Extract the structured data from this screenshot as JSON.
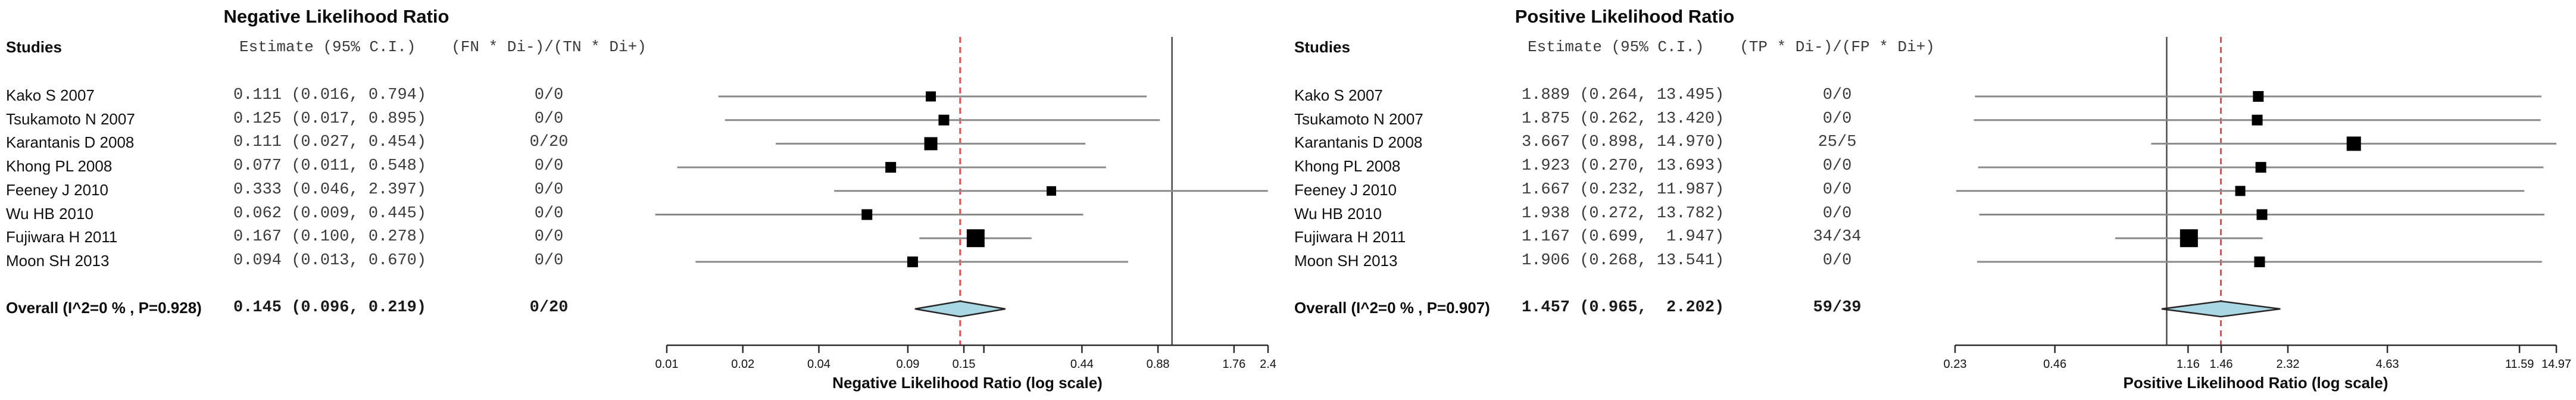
{
  "figure_title": "",
  "colors": {
    "ci_line": "#8a8a8a",
    "marker": "#000000",
    "null_line": "#4a4a4a",
    "overall_ref_line": "#ff4343",
    "diamond_fill": "#a9d8e4",
    "diamond_border": "#262626",
    "axis": "#2b2b2b"
  },
  "chart_data": [
    {
      "type": "forest",
      "title": "Negative Likelihood Ratio",
      "columns": {
        "studies": "Studies",
        "estimate": "Estimate (95% C.I.)",
        "counts": "(FN * Di-)/(TN * Di+)"
      },
      "null_value": 1.0,
      "overall_ref": 0.145,
      "rows": [
        {
          "name": "Kako S 2007",
          "estimate_text": "0.111 (0.016, 0.794)",
          "est": 0.111,
          "lo": 0.016,
          "hi": 0.794,
          "count": "0/0",
          "marker": 17
        },
        {
          "name": "Tsukamoto N 2007",
          "estimate_text": "0.125 (0.017, 0.895)",
          "est": 0.125,
          "lo": 0.017,
          "hi": 0.895,
          "count": "0/0",
          "marker": 18
        },
        {
          "name": "Karantanis D 2008",
          "estimate_text": "0.111 (0.027, 0.454)",
          "est": 0.111,
          "lo": 0.027,
          "hi": 0.454,
          "count": "0/20",
          "marker": 22
        },
        {
          "name": "Khong PL 2008",
          "estimate_text": "0.077 (0.011, 0.548)",
          "est": 0.077,
          "lo": 0.011,
          "hi": 0.548,
          "count": "0/0",
          "marker": 18
        },
        {
          "name": "Feeney J 2010",
          "estimate_text": "0.333 (0.046, 2.397)",
          "est": 0.333,
          "lo": 0.046,
          "hi": 2.397,
          "count": "0/0",
          "marker": 16
        },
        {
          "name": "Wu HB 2010",
          "estimate_text": "0.062 (0.009, 0.445)",
          "est": 0.062,
          "lo": 0.009,
          "hi": 0.445,
          "count": "0/0",
          "marker": 18
        },
        {
          "name": "Fujiwara H 2011",
          "estimate_text": "0.167 (0.100, 0.278)",
          "est": 0.167,
          "lo": 0.1,
          "hi": 0.278,
          "count": "0/0",
          "marker": 30
        },
        {
          "name": "Moon SH 2013",
          "estimate_text": "0.094 (0.013, 0.670)",
          "est": 0.094,
          "lo": 0.013,
          "hi": 0.67,
          "count": "0/0",
          "marker": 18
        }
      ],
      "overall": {
        "name": "Overall (I^2=0 % , P=0.928)",
        "estimate_text": "0.145 (0.096, 0.219)",
        "est": 0.145,
        "lo": 0.096,
        "hi": 0.219,
        "count": "0/20"
      },
      "axis": {
        "label": "Negative Likelihood Ratio (log scale)",
        "min": 0.01,
        "max": 2.4,
        "ticks": [
          0.01,
          0.02,
          0.04,
          0.09,
          0.15,
          0.44,
          0.88,
          1.76,
          2.4
        ],
        "tick_labels": [
          "0.01",
          "0.02",
          "0.04",
          "0.09",
          "0.15",
          "0.44",
          "0.88",
          "1.76",
          "2.4"
        ],
        "minor_ticks": [
          0.18
        ],
        "scale": "log"
      }
    },
    {
      "type": "forest",
      "title": "Positive Likelihood Ratio",
      "columns": {
        "studies": "Studies",
        "estimate": "Estimate (95% C.I.)",
        "counts": "(TP * Di-)/(FP * Di+)"
      },
      "null_value": 1.0,
      "overall_ref": 1.457,
      "rows": [
        {
          "name": "Kako S 2007",
          "estimate_text": "1.889 (0.264, 13.495)",
          "est": 1.889,
          "lo": 0.264,
          "hi": 13.495,
          "count": "0/0",
          "marker": 18
        },
        {
          "name": "Tsukamoto N 2007",
          "estimate_text": "1.875 (0.262, 13.420)",
          "est": 1.875,
          "lo": 0.262,
          "hi": 13.42,
          "count": "0/0",
          "marker": 18
        },
        {
          "name": "Karantanis D 2008",
          "estimate_text": "3.667 (0.898, 14.970)",
          "est": 3.667,
          "lo": 0.898,
          "hi": 14.97,
          "count": "25/5",
          "marker": 24
        },
        {
          "name": "Khong PL 2008",
          "estimate_text": "1.923 (0.270, 13.693)",
          "est": 1.923,
          "lo": 0.27,
          "hi": 13.693,
          "count": "0/0",
          "marker": 18
        },
        {
          "name": "Feeney J 2010",
          "estimate_text": "1.667 (0.232, 11.987)",
          "est": 1.667,
          "lo": 0.232,
          "hi": 11.987,
          "count": "0/0",
          "marker": 17
        },
        {
          "name": "Wu HB 2010",
          "estimate_text": "1.938 (0.272, 13.782)",
          "est": 1.938,
          "lo": 0.272,
          "hi": 13.782,
          "count": "0/0",
          "marker": 18
        },
        {
          "name": "Fujiwara H 2011",
          "estimate_text": "1.167 (0.699,  1.947)",
          "est": 1.167,
          "lo": 0.699,
          "hi": 1.947,
          "count": "34/34",
          "marker": 30
        },
        {
          "name": "Moon SH 2013",
          "estimate_text": "1.906 (0.268, 13.541)",
          "est": 1.906,
          "lo": 0.268,
          "hi": 13.541,
          "count": "0/0",
          "marker": 18
        }
      ],
      "overall": {
        "name": "Overall (I^2=0 % , P=0.907)",
        "estimate_text": "1.457 (0.965,  2.202)",
        "est": 1.457,
        "lo": 0.965,
        "hi": 2.202,
        "count": "59/39"
      },
      "axis": {
        "label": "Positive Likelihood Ratio (log scale)",
        "min": 0.23,
        "max": 14.97,
        "ticks": [
          0.23,
          0.46,
          1.16,
          1.46,
          2.32,
          4.63,
          11.59,
          14.97
        ],
        "tick_labels": [
          "0.23",
          "0.46",
          "1.16",
          "1.46",
          "2.32",
          "4.63",
          "11.59",
          "14.97"
        ],
        "minor_ticks": [],
        "scale": "log"
      }
    }
  ]
}
